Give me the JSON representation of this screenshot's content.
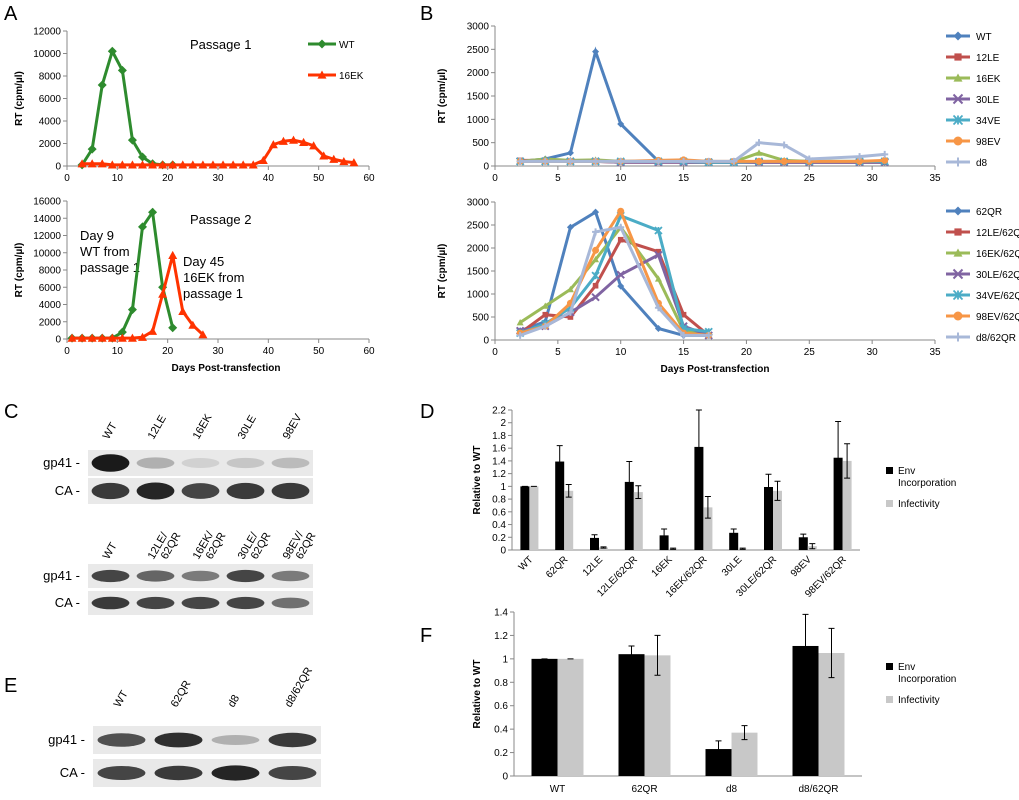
{
  "panels": {
    "A": "A",
    "B": "B",
    "C": "C",
    "D": "D",
    "E": "E",
    "F": "F"
  },
  "colors": {
    "wt_green": "#2e8b2e",
    "ek_red": "#ff3300",
    "WT": "#4f81bd",
    "12LE": "#c0504d",
    "16EK": "#9bbb59",
    "30LE": "#8064a2",
    "34VE": "#4bacc6",
    "98EV": "#f79646",
    "d8": "#a8b8d8",
    "env_bar": "#000000",
    "inf_bar": "#c8c8c8"
  },
  "annotations": {
    "a_top_title": "Passage 1",
    "a_bottom_title": "Passage 2",
    "a_day9": [
      "Day 9",
      "WT from",
      "passage 1"
    ],
    "a_day45": [
      "Day 45",
      "16EK from",
      "passage 1"
    ]
  },
  "chart_data": [
    {
      "id": "A1",
      "type": "line",
      "title": "Passage 1",
      "xlabel": "",
      "ylabel": "RT (cpm/µl)",
      "xlim": [
        0,
        60
      ],
      "ylim": [
        0,
        12000
      ],
      "xticks": [
        0,
        10,
        20,
        30,
        40,
        50,
        60
      ],
      "yticks": [
        0,
        2000,
        4000,
        6000,
        8000,
        10000,
        12000
      ],
      "grid": false,
      "legend": "top-right",
      "series": [
        {
          "name": "WT",
          "color": "#2e8b2e",
          "marker": "diamond",
          "x": [
            3,
            5,
            7,
            9,
            11,
            13,
            15,
            17,
            19,
            21
          ],
          "y": [
            100,
            1500,
            7200,
            10200,
            8500,
            2300,
            800,
            200,
            100,
            100
          ]
        },
        {
          "name": "16EK",
          "color": "#ff3300",
          "marker": "triangle",
          "x": [
            3,
            5,
            7,
            9,
            11,
            13,
            15,
            17,
            19,
            21,
            23,
            25,
            27,
            29,
            31,
            33,
            35,
            37,
            39,
            41,
            43,
            45,
            47,
            49,
            51,
            53,
            55,
            57
          ],
          "y": [
            200,
            200,
            200,
            100,
            100,
            100,
            100,
            100,
            100,
            100,
            100,
            100,
            100,
            100,
            100,
            100,
            100,
            100,
            500,
            1900,
            2200,
            2300,
            2100,
            1800,
            900,
            600,
            400,
            300
          ]
        }
      ]
    },
    {
      "id": "A2",
      "type": "line",
      "title": "Passage 2",
      "xlabel": "Days Post-transfection",
      "ylabel": "RT (cpm/µl)",
      "xlim": [
        0,
        60
      ],
      "ylim": [
        0,
        16000
      ],
      "xticks": [
        0,
        10,
        20,
        30,
        40,
        50,
        60
      ],
      "yticks": [
        0,
        2000,
        4000,
        6000,
        8000,
        10000,
        12000,
        14000,
        16000
      ],
      "grid": false,
      "series": [
        {
          "name": "WT",
          "color": "#2e8b2e",
          "marker": "diamond",
          "x": [
            1,
            3,
            5,
            7,
            9,
            11,
            13,
            15,
            17,
            19,
            21
          ],
          "y": [
            100,
            100,
            100,
            100,
            100,
            800,
            3400,
            13000,
            14700,
            6000,
            1300
          ]
        },
        {
          "name": "16EK",
          "color": "#ff3300",
          "marker": "triangle",
          "x": [
            1,
            3,
            5,
            7,
            9,
            11,
            13,
            15,
            17,
            19,
            21,
            23,
            25,
            27
          ],
          "y": [
            100,
            100,
            100,
            100,
            100,
            100,
            100,
            200,
            900,
            5200,
            9700,
            3200,
            1600,
            500
          ]
        }
      ]
    },
    {
      "id": "B1",
      "type": "line",
      "title": "",
      "xlabel": "",
      "ylabel": "RT (cpm/µl)",
      "xlim": [
        0,
        35
      ],
      "ylim": [
        0,
        3000
      ],
      "xticks": [
        0,
        5,
        10,
        15,
        20,
        25,
        30,
        35
      ],
      "yticks": [
        0,
        500,
        1000,
        1500,
        2000,
        2500,
        3000
      ],
      "grid": false,
      "legend": "right",
      "series": [
        {
          "name": "WT",
          "color": "#4f81bd",
          "marker": "diamond",
          "x": [
            2,
            4,
            6,
            8,
            10,
            13,
            15,
            17,
            19,
            21,
            23,
            25,
            29,
            31
          ],
          "y": [
            100,
            150,
            280,
            2450,
            900,
            100,
            80,
            80,
            80,
            80,
            80,
            80,
            80,
            80
          ]
        },
        {
          "name": "12LE",
          "color": "#c0504d",
          "marker": "square",
          "x": [
            2,
            4,
            6,
            8,
            10,
            13,
            15,
            17,
            19,
            21,
            23,
            25,
            29,
            31
          ],
          "y": [
            120,
            120,
            100,
            100,
            80,
            80,
            80,
            80,
            80,
            80,
            80,
            80,
            80,
            80
          ]
        },
        {
          "name": "16EK",
          "color": "#9bbb59",
          "marker": "triangle",
          "x": [
            2,
            4,
            6,
            8,
            10,
            13,
            15,
            17,
            19,
            21,
            23,
            25,
            29,
            31
          ],
          "y": [
            100,
            150,
            120,
            130,
            100,
            100,
            100,
            80,
            90,
            280,
            120,
            100,
            100,
            100
          ]
        },
        {
          "name": "30LE",
          "color": "#8064a2",
          "marker": "x",
          "x": [
            2,
            4,
            6,
            8,
            10,
            13,
            15,
            17,
            19,
            21,
            23,
            25,
            29,
            31
          ],
          "y": [
            100,
            100,
            100,
            100,
            80,
            80,
            80,
            80,
            80,
            80,
            80,
            80,
            80,
            80
          ]
        },
        {
          "name": "34VE",
          "color": "#4bacc6",
          "marker": "star",
          "x": [
            2,
            4,
            6,
            8,
            10,
            13,
            15,
            17,
            19,
            21,
            23,
            25,
            29,
            31
          ],
          "y": [
            100,
            100,
            100,
            100,
            100,
            100,
            100,
            80,
            80,
            100,
            100,
            100,
            100,
            100
          ]
        },
        {
          "name": "98EV",
          "color": "#f79646",
          "marker": "circle",
          "x": [
            2,
            4,
            6,
            8,
            10,
            13,
            15,
            17,
            19,
            21,
            23,
            25,
            29,
            31
          ],
          "y": [
            100,
            100,
            100,
            100,
            100,
            120,
            130,
            100,
            100,
            100,
            100,
            100,
            100,
            120
          ]
        },
        {
          "name": "d8",
          "color": "#a8b8d8",
          "marker": "plus",
          "x": [
            2,
            4,
            6,
            8,
            10,
            13,
            15,
            17,
            19,
            21,
            23,
            25,
            29,
            31
          ],
          "y": [
            100,
            100,
            100,
            100,
            100,
            100,
            100,
            100,
            100,
            500,
            450,
            150,
            200,
            250
          ]
        }
      ]
    },
    {
      "id": "B2",
      "type": "line",
      "title": "",
      "xlabel": "Days Post-transfection",
      "ylabel": "RT (cpm/µl)",
      "xlim": [
        0,
        35
      ],
      "ylim": [
        0,
        3000
      ],
      "xticks": [
        0,
        5,
        10,
        15,
        20,
        25,
        30,
        35
      ],
      "yticks": [
        0,
        500,
        1000,
        1500,
        2000,
        2500,
        3000
      ],
      "grid": false,
      "legend": "right",
      "series": [
        {
          "name": "62QR",
          "color": "#4f81bd",
          "marker": "diamond",
          "x": [
            2,
            4,
            6,
            8,
            10,
            13,
            15,
            17
          ],
          "y": [
            200,
            400,
            2450,
            2780,
            1170,
            250,
            100,
            100
          ]
        },
        {
          "name": "12LE/62QR",
          "color": "#c0504d",
          "marker": "square",
          "x": [
            2,
            4,
            6,
            8,
            10,
            13,
            15,
            17
          ],
          "y": [
            150,
            550,
            500,
            1180,
            2180,
            1920,
            550,
            100
          ]
        },
        {
          "name": "16EK/62QR",
          "color": "#9bbb59",
          "marker": "triangle",
          "x": [
            2,
            4,
            6,
            8,
            10,
            13,
            15,
            17
          ],
          "y": [
            380,
            740,
            1100,
            1750,
            2450,
            1330,
            200,
            100
          ]
        },
        {
          "name": "30LE/62QR",
          "color": "#8064a2",
          "marker": "x",
          "x": [
            2,
            4,
            6,
            8,
            10,
            13,
            15,
            17
          ],
          "y": [
            200,
            300,
            600,
            930,
            1420,
            1850,
            300,
            100
          ]
        },
        {
          "name": "34VE/62QR",
          "color": "#4bacc6",
          "marker": "star",
          "x": [
            2,
            4,
            6,
            8,
            10,
            13,
            15,
            17
          ],
          "y": [
            150,
            350,
            700,
            1400,
            2700,
            2380,
            250,
            180
          ]
        },
        {
          "name": "98EV/62QR",
          "color": "#f79646",
          "marker": "circle",
          "x": [
            2,
            4,
            6,
            8,
            10,
            13,
            15,
            17
          ],
          "y": [
            150,
            300,
            800,
            1950,
            2800,
            800,
            150,
            100
          ]
        },
        {
          "name": "d8/62QR",
          "color": "#a8b8d8",
          "marker": "plus",
          "x": [
            2,
            4,
            6,
            8,
            10,
            13,
            15,
            17
          ],
          "y": [
            100,
            300,
            600,
            2350,
            2450,
            700,
            100,
            100
          ]
        }
      ]
    },
    {
      "id": "D",
      "type": "bar",
      "title": "",
      "xlabel": "",
      "ylabel": "Relative to WT",
      "ylim": [
        0,
        2.2
      ],
      "yticks": [
        "0",
        "0.2",
        "0.4",
        "0.6",
        "0.8",
        "1",
        "1.2",
        "1.4",
        "1.6",
        "1.8",
        "2",
        "2.2"
      ],
      "grid": false,
      "legend": "right",
      "categories": [
        "WT",
        "62QR",
        "12LE",
        "12LE/62QR",
        "16EK",
        "16EK/62QR",
        "30LE",
        "30LE/62QR",
        "98EV",
        "98EV/62QR"
      ],
      "series": [
        {
          "name": "Env Incorporation",
          "name_lines": [
            "Env",
            "Incorporation"
          ],
          "color": "#000000",
          "values": [
            1.0,
            1.39,
            0.19,
            1.07,
            0.23,
            1.62,
            0.27,
            0.99,
            0.2,
            1.45
          ],
          "errors": [
            0.0,
            0.25,
            0.05,
            0.32,
            0.1,
            0.58,
            0.06,
            0.2,
            0.05,
            0.57
          ]
        },
        {
          "name": "Infectivity",
          "name_lines": [
            "Infectivity"
          ],
          "color": "#c8c8c8",
          "values": [
            1.0,
            0.93,
            0.04,
            0.91,
            0.02,
            0.67,
            0.02,
            0.93,
            0.06,
            1.4
          ],
          "errors": [
            0.0,
            0.1,
            0.01,
            0.1,
            0.01,
            0.17,
            0.01,
            0.15,
            0.04,
            0.27
          ]
        }
      ]
    },
    {
      "id": "F",
      "type": "bar",
      "title": "",
      "xlabel": "",
      "ylabel": "Relative to WT",
      "ylim": [
        0,
        1.4
      ],
      "yticks": [
        "0",
        "0.2",
        "0.4",
        "0.6",
        "0.8",
        "1",
        "1.2",
        "1.4"
      ],
      "grid": false,
      "legend": "right",
      "categories": [
        "WT",
        "62QR",
        "d8",
        "d8/62QR"
      ],
      "series": [
        {
          "name": "Env Incorporation",
          "name_lines": [
            "Env",
            "Incorporation"
          ],
          "color": "#000000",
          "values": [
            1.0,
            1.04,
            0.23,
            1.11
          ],
          "errors": [
            0.0,
            0.07,
            0.07,
            0.27
          ]
        },
        {
          "name": "Infectivity",
          "name_lines": [
            "Infectivity"
          ],
          "color": "#c8c8c8",
          "values": [
            1.0,
            1.03,
            0.37,
            1.05
          ],
          "errors": [
            0.0,
            0.17,
            0.06,
            0.21
          ]
        }
      ]
    }
  ],
  "blots": {
    "C_top": {
      "lanes": [
        "WT",
        "12LE",
        "16EK",
        "30LE",
        "98EV"
      ],
      "rows": [
        {
          "label": "gp41 -",
          "intensity": [
            0.95,
            0.25,
            0.1,
            0.15,
            0.2
          ]
        },
        {
          "label": "CA -",
          "intensity": [
            0.8,
            0.9,
            0.75,
            0.8,
            0.8
          ]
        }
      ]
    },
    "C_bottom": {
      "lanes": [
        [
          "WT"
        ],
        [
          "12LE/",
          "62QR"
        ],
        [
          "16EK/",
          "62QR"
        ],
        [
          "30LE/",
          "62QR"
        ],
        [
          "98EV/",
          "62QR"
        ]
      ],
      "rows": [
        {
          "label": "gp41 -",
          "intensity": [
            0.75,
            0.6,
            0.5,
            0.75,
            0.5
          ]
        },
        {
          "label": "CA -",
          "intensity": [
            0.8,
            0.75,
            0.75,
            0.75,
            0.55
          ]
        }
      ]
    },
    "E": {
      "lanes": [
        "WT",
        "62QR",
        "d8",
        "d8/62QR"
      ],
      "rows": [
        {
          "label": "gp41 -",
          "intensity": [
            0.7,
            0.85,
            0.25,
            0.8
          ]
        },
        {
          "label": "CA -",
          "intensity": [
            0.75,
            0.8,
            0.9,
            0.75
          ]
        }
      ]
    }
  }
}
